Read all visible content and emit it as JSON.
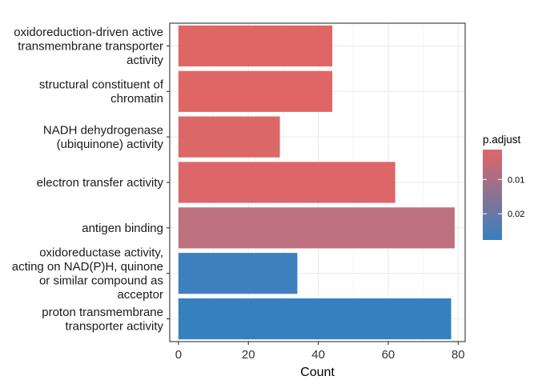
{
  "chart_data": {
    "type": "bar",
    "orientation": "horizontal",
    "xlabel": "Count",
    "ylabel": "",
    "xlim": [
      -2.5,
      82
    ],
    "x_ticks": [
      0,
      20,
      40,
      60,
      80
    ],
    "grid": true,
    "categories": [
      [
        "oxidoreduction-driven active",
        "transmembrane transporter",
        "activity"
      ],
      [
        "structural constituent of",
        "chromatin"
      ],
      [
        "NADH dehydrogenase",
        "(ubiquinone) activity"
      ],
      [
        "electron transfer activity"
      ],
      [
        "antigen binding"
      ],
      [
        "oxidoreductase activity,",
        "acting on NAD(P)H, quinone",
        "or similar compound as",
        "acceptor"
      ],
      [
        "proton transmembrane",
        "transporter activity"
      ]
    ],
    "values": [
      44,
      44,
      29,
      62,
      79,
      34,
      78
    ],
    "bar_colors": [
      "#e06666",
      "#e06666",
      "#dc6767",
      "#dd6768",
      "#bd707e",
      "#3c80be",
      "#3680bf"
    ],
    "legend": {
      "title": "p.adjust",
      "placement": "right",
      "ticks": [
        {
          "label": "0.01",
          "frac": 0.33
        },
        {
          "label": "0.02",
          "frac": 0.71
        }
      ],
      "color_low": "#e06666",
      "color_high": "#3680bf"
    }
  }
}
